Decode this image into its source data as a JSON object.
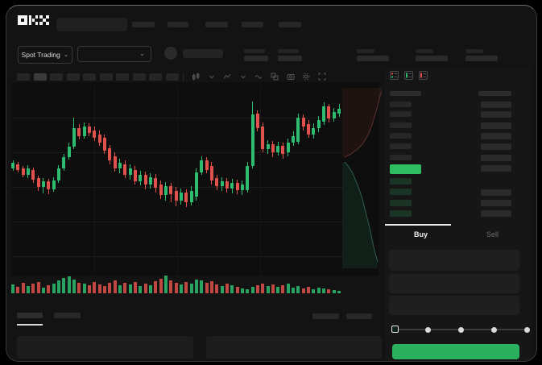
{
  "brand": {
    "logo_label": "OKX"
  },
  "market_selector": {
    "label": "Spot Trading",
    "chevron": "⌄"
  },
  "trade_panel": {
    "buy_tab_label": "Buy",
    "sell_tab_label": "Sell",
    "slider_value_percent": 0,
    "slider_stop_count": 5
  },
  "toolbar_icons": [
    "chart-type",
    "chevron-down",
    "indicators",
    "chevron-down",
    "drawing-tools",
    "compare",
    "screenshot",
    "settings",
    "fullscreen"
  ],
  "orderbook_icons": [
    "orderbook-default-view",
    "orderbook-buys-view",
    "orderbook-sells-view"
  ],
  "colors": {
    "up": "#2ebd70",
    "down": "#e0524b",
    "buy_button": "#2bb05f",
    "orderbook_last_price": "#2ebd5f",
    "bid_row_fill": "#1a3526",
    "depth_ask_line": "#8c4a4a",
    "depth_bid_line": "#4f9a80"
  },
  "chart_data": [
    {
      "type": "candlestick",
      "title": "",
      "axis_labels_visible": false,
      "units": "relative price (estimated, no axis labels shown)",
      "candles_ochl": [
        [
          130,
          137,
          140,
          127
        ],
        [
          135,
          128,
          138,
          125
        ],
        [
          130,
          122,
          133,
          119
        ],
        [
          122,
          130,
          134,
          118
        ],
        [
          128,
          116,
          131,
          112
        ],
        [
          118,
          107,
          121,
          102
        ],
        [
          107,
          114,
          118,
          99
        ],
        [
          114,
          104,
          117,
          98
        ],
        [
          104,
          115,
          119,
          101
        ],
        [
          115,
          130,
          134,
          112
        ],
        [
          130,
          144,
          148,
          127
        ],
        [
          144,
          157,
          162,
          141
        ],
        [
          157,
          180,
          193,
          154
        ],
        [
          180,
          170,
          185,
          166
        ],
        [
          170,
          182,
          187,
          167
        ],
        [
          182,
          174,
          186,
          170
        ],
        [
          177,
          168,
          182,
          164
        ],
        [
          172,
          162,
          177,
          158
        ],
        [
          168,
          152,
          172,
          148
        ],
        [
          155,
          140,
          159,
          135
        ],
        [
          145,
          130,
          150,
          126
        ],
        [
          130,
          137,
          142,
          124
        ],
        [
          135,
          122,
          140,
          118
        ],
        [
          122,
          130,
          135,
          116
        ],
        [
          128,
          114,
          133,
          110
        ],
        [
          114,
          122,
          127,
          109
        ],
        [
          122,
          110,
          126,
          104
        ],
        [
          110,
          119,
          124,
          105
        ],
        [
          118,
          106,
          123,
          100
        ],
        [
          110,
          97,
          115,
          92
        ],
        [
          97,
          108,
          113,
          90
        ],
        [
          108,
          98,
          112,
          88
        ],
        [
          102,
          90,
          107,
          83
        ],
        [
          90,
          100,
          105,
          85
        ],
        [
          100,
          88,
          104,
          82
        ],
        [
          88,
          102,
          108,
          84
        ],
        [
          95,
          125,
          130,
          90
        ],
        [
          125,
          140,
          145,
          122
        ],
        [
          140,
          128,
          144,
          124
        ],
        [
          133,
          115,
          138,
          110
        ],
        [
          118,
          108,
          122,
          103
        ],
        [
          108,
          114,
          119,
          102
        ],
        [
          114,
          105,
          118,
          100
        ],
        [
          105,
          112,
          117,
          99
        ],
        [
          112,
          103,
          116,
          98
        ],
        [
          103,
          110,
          115,
          97
        ],
        [
          103,
          133,
          138,
          100
        ],
        [
          133,
          197,
          213,
          130
        ],
        [
          198,
          180,
          202,
          176
        ],
        [
          182,
          154,
          187,
          150
        ],
        [
          154,
          160,
          165,
          148
        ],
        [
          160,
          150,
          164,
          144
        ],
        [
          150,
          158,
          163,
          146
        ],
        [
          158,
          148,
          162,
          142
        ],
        [
          150,
          162,
          167,
          145
        ],
        [
          162,
          170,
          176,
          158
        ],
        [
          163,
          193,
          198,
          160
        ],
        [
          193,
          182,
          197,
          177
        ],
        [
          185,
          172,
          190,
          168
        ],
        [
          172,
          180,
          186,
          167
        ],
        [
          180,
          190,
          195,
          175
        ],
        [
          188,
          207,
          212,
          184
        ],
        [
          207,
          192,
          210,
          187
        ],
        [
          192,
          200,
          205,
          188
        ],
        [
          198,
          204,
          210,
          194
        ]
      ]
    },
    {
      "type": "bar",
      "name": "volume",
      "colors_follow_candles": true,
      "values": [
        11,
        8,
        13,
        9,
        12,
        14,
        7,
        10,
        12,
        16,
        19,
        21,
        17,
        13,
        12,
        10,
        14,
        11,
        9,
        13,
        16,
        10,
        13,
        11,
        14,
        9,
        12,
        10,
        15,
        18,
        22,
        16,
        13,
        11,
        14,
        12,
        17,
        16,
        13,
        15,
        11,
        9,
        12,
        10,
        8,
        6,
        5,
        8,
        10,
        12,
        9,
        11,
        8,
        10,
        12,
        7,
        9,
        6,
        8,
        5,
        7,
        6,
        5,
        4,
        3
      ]
    },
    {
      "type": "area",
      "name": "depth",
      "asks_line": [
        [
          49,
          6
        ],
        [
          47,
          12
        ],
        [
          45,
          20
        ],
        [
          43,
          28
        ],
        [
          40,
          38
        ],
        [
          37,
          48
        ],
        [
          34,
          56
        ],
        [
          30,
          64
        ],
        [
          25,
          72
        ],
        [
          19,
          78
        ],
        [
          11,
          84
        ],
        [
          3,
          88
        ]
      ],
      "bids_line": [
        [
          3,
          94
        ],
        [
          8,
          100
        ],
        [
          13,
          108
        ],
        [
          17,
          118
        ],
        [
          21,
          128
        ],
        [
          25,
          140
        ],
        [
          28,
          152
        ],
        [
          31,
          164
        ],
        [
          34,
          176
        ],
        [
          37,
          190
        ],
        [
          40,
          204
        ],
        [
          44,
          218
        ]
      ]
    }
  ]
}
